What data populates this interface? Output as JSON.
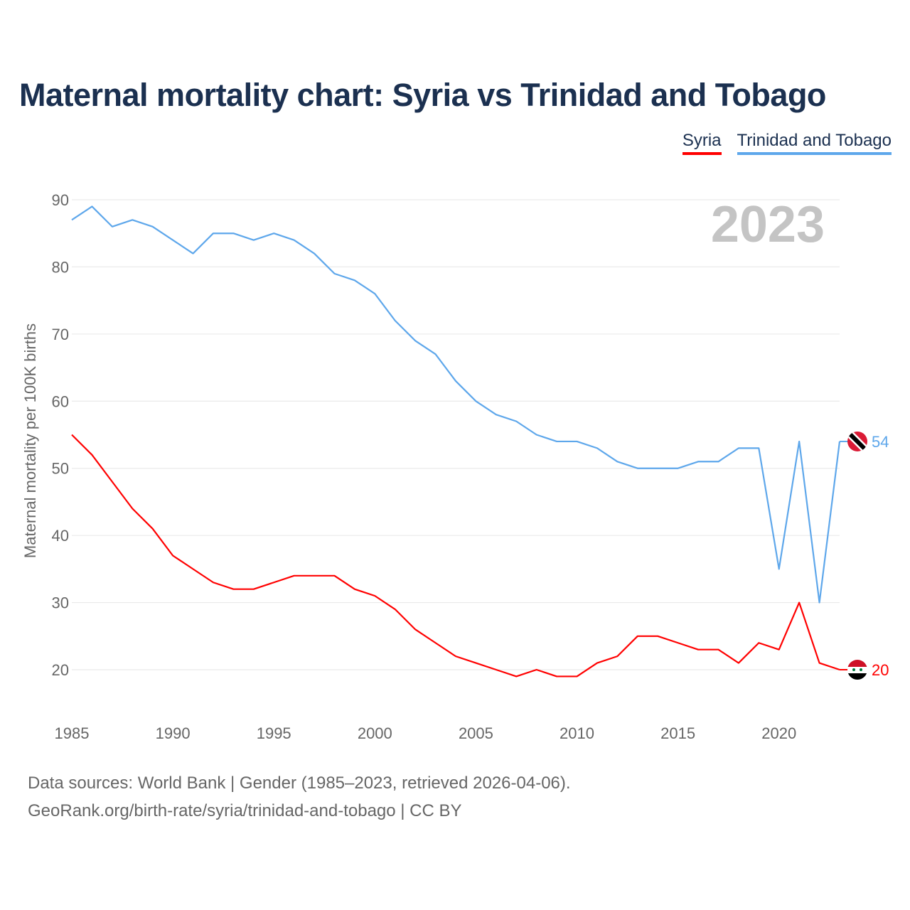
{
  "title": "Maternal mortality chart: Syria vs Trinidad and Tobago",
  "footer": {
    "line1": "Data sources: World Bank | Gender (1985–2023, retrieved 2026-04-06).",
    "line2": "GeoRank.org/birth-rate/syria/trinidad-and-tobago | CC BY"
  },
  "chart_data": {
    "type": "line",
    "title": "Maternal mortality chart: Syria vs Trinidad and Tobago",
    "year_label": "2023",
    "ylabel": "Maternal mortality per 100K births",
    "xlabel": "",
    "ylim": [
      13,
      92
    ],
    "xlim": [
      1985,
      2023
    ],
    "yticks": [
      20,
      30,
      40,
      50,
      60,
      70,
      80,
      90
    ],
    "xticks": [
      1985,
      1990,
      1995,
      2000,
      2005,
      2010,
      2015,
      2020
    ],
    "grid": true,
    "legend_position": "top-right",
    "x": [
      1985,
      1986,
      1987,
      1988,
      1989,
      1990,
      1991,
      1992,
      1993,
      1994,
      1995,
      1996,
      1997,
      1998,
      1999,
      2000,
      2001,
      2002,
      2003,
      2004,
      2005,
      2006,
      2007,
      2008,
      2009,
      2010,
      2011,
      2012,
      2013,
      2014,
      2015,
      2016,
      2017,
      2018,
      2019,
      2020,
      2021,
      2022,
      2023
    ],
    "series": [
      {
        "name": "Syria",
        "color": "#ff0000",
        "end_label": "20",
        "values": [
          55,
          52,
          48,
          44,
          41,
          37,
          35,
          33,
          32,
          32,
          33,
          34,
          34,
          34,
          32,
          31,
          29,
          26,
          24,
          22,
          21,
          20,
          19,
          20,
          19,
          19,
          21,
          22,
          25,
          25,
          24,
          23,
          23,
          21,
          24,
          23,
          30,
          21,
          20
        ]
      },
      {
        "name": "Trinidad and Tobago",
        "color": "#5ea7eb",
        "end_label": "54",
        "values": [
          87,
          89,
          86,
          87,
          86,
          84,
          82,
          85,
          85,
          84,
          85,
          84,
          82,
          79,
          78,
          76,
          72,
          69,
          67,
          63,
          60,
          58,
          57,
          55,
          54,
          54,
          53,
          51,
          50,
          50,
          50,
          51,
          51,
          53,
          53,
          35,
          54,
          30,
          54
        ]
      }
    ]
  }
}
